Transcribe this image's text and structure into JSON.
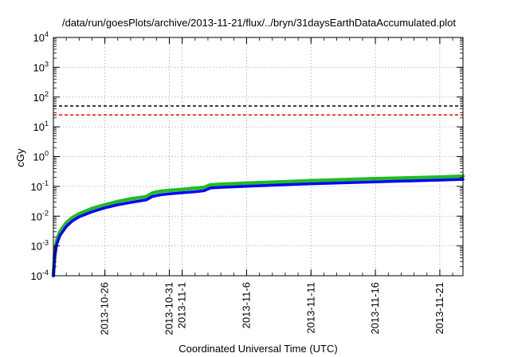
{
  "chart_data": {
    "type": "line",
    "title": "/data/run/goesPlots/archive/2013-11-21/flux/../bryn/31daysEarthDataAccumulated.plot",
    "xlabel": "Coordinated Universal Time (UTC)",
    "ylabel": "cGy",
    "yscale": "log",
    "ylim": [
      0.0001,
      10000
    ],
    "y_ticks": [
      {
        "value": 0.0001,
        "base": "10",
        "exp": "-4"
      },
      {
        "value": 0.001,
        "base": "10",
        "exp": "-3"
      },
      {
        "value": 0.01,
        "base": "10",
        "exp": "-2"
      },
      {
        "value": 0.1,
        "base": "10",
        "exp": "-1"
      },
      {
        "value": 1,
        "base": "10",
        "exp": "0"
      },
      {
        "value": 10,
        "base": "10",
        "exp": "1"
      },
      {
        "value": 100,
        "base": "10",
        "exp": "2"
      },
      {
        "value": 1000,
        "base": "10",
        "exp": "3"
      },
      {
        "value": 10000,
        "base": "10",
        "exp": "4"
      }
    ],
    "xlim": [
      "2013-10-22",
      "2013-11-22.8"
    ],
    "x_ticks": [
      {
        "value": "2013-10-26",
        "label": "2013-10-26"
      },
      {
        "value": "2013-10-31",
        "label": "2013-10-31"
      },
      {
        "value": "2013-11-01",
        "label": "2013-11-1"
      },
      {
        "value": "2013-11-06",
        "label": "2013-11-6"
      },
      {
        "value": "2013-11-11",
        "label": "2013-11-11"
      },
      {
        "value": "2013-11-16",
        "label": "2013-11-16"
      },
      {
        "value": "2013-11-21",
        "label": "2013-11-21"
      }
    ],
    "grid": true,
    "thresholds": [
      {
        "value": 50,
        "color": "#000000",
        "style": "dashed"
      },
      {
        "value": 25,
        "color": "#ff0000",
        "style": "dashed"
      }
    ],
    "series": [
      {
        "color": "#22bb22",
        "x": [
          "2013-10-22",
          "2013-10-22.1",
          "2013-10-22.25",
          "2013-10-22.5",
          "2013-10-23",
          "2013-10-23.5",
          "2013-10-24",
          "2013-10-25",
          "2013-10-26",
          "2013-10-27",
          "2013-10-28",
          "2013-10-29.2",
          "2013-10-29.7",
          "2013-10-30.3",
          "2013-10-31",
          "2013-11-01",
          "2013-11-02",
          "2013-11-02.7",
          "2013-11-03.2",
          "2013-11-04",
          "2013-11-06",
          "2013-11-11",
          "2013-11-16",
          "2013-11-21",
          "2013-11-22.8"
        ],
        "y": [
          0.0001,
          0.0006,
          0.0015,
          0.003,
          0.006,
          0.009,
          0.012,
          0.018,
          0.024,
          0.031,
          0.038,
          0.045,
          0.06,
          0.068,
          0.073,
          0.079,
          0.086,
          0.092,
          0.112,
          0.118,
          0.128,
          0.155,
          0.18,
          0.205,
          0.22
        ]
      },
      {
        "color": "#0000ff",
        "x": [
          "2013-10-22",
          "2013-10-22.1",
          "2013-10-22.25",
          "2013-10-22.5",
          "2013-10-23",
          "2013-10-23.5",
          "2013-10-24",
          "2013-10-25",
          "2013-10-26",
          "2013-10-27",
          "2013-10-28",
          "2013-10-29.2",
          "2013-10-29.7",
          "2013-10-30.3",
          "2013-10-31",
          "2013-11-01",
          "2013-11-02",
          "2013-11-02.7",
          "2013-11-03.2",
          "2013-11-04",
          "2013-11-06",
          "2013-11-11",
          "2013-11-16",
          "2013-11-21",
          "2013-11-22.8"
        ],
        "y": [
          0.0001,
          0.0004,
          0.0011,
          0.0022,
          0.0045,
          0.007,
          0.0095,
          0.014,
          0.019,
          0.024,
          0.029,
          0.035,
          0.046,
          0.052,
          0.056,
          0.061,
          0.066,
          0.071,
          0.088,
          0.093,
          0.101,
          0.122,
          0.142,
          0.162,
          0.172
        ]
      }
    ]
  }
}
